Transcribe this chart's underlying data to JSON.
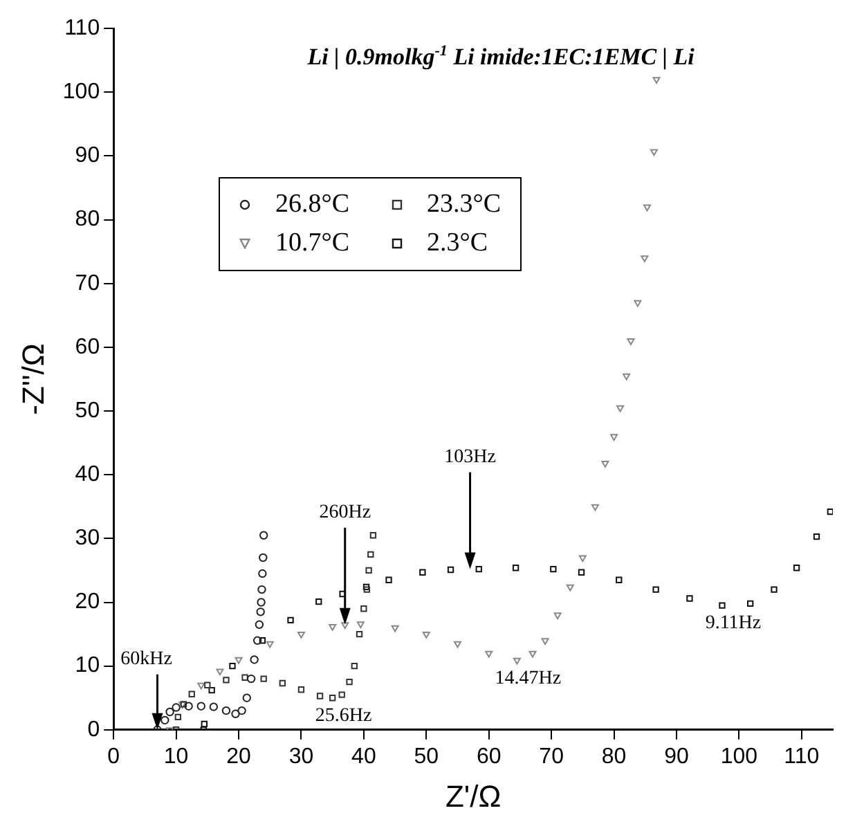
{
  "chart_data": {
    "type": "scatter",
    "title": "Li | 0.9molkg$^{-1}$ Li imide:1EC:1EMC | Li",
    "xlabel": "Z'/Ω",
    "ylabel": "-Z''/Ω",
    "xlim": [
      0,
      115
    ],
    "ylim": [
      0,
      110
    ],
    "xticks": [
      0,
      10,
      20,
      30,
      40,
      50,
      60,
      70,
      80,
      90,
      100,
      110
    ],
    "yticks": [
      0,
      10,
      20,
      30,
      40,
      50,
      60,
      70,
      80,
      90,
      100,
      110
    ],
    "grid": false,
    "legend": "top left",
    "series": [
      {
        "name": "26.8°C",
        "color": "#222222",
        "marker": "circle",
        "x": [
          7,
          8.2,
          9,
          10,
          12,
          14,
          16,
          18,
          19.5,
          20.5,
          21.3,
          22,
          22.5,
          23,
          23.3,
          23.5,
          23.6,
          23.7,
          23.8,
          23.9,
          24
        ],
        "values": [
          0,
          1.5,
          2.8,
          3.5,
          3.7,
          3.7,
          3.6,
          3,
          2.5,
          3,
          5,
          8,
          11,
          14,
          16.5,
          18.5,
          20,
          22,
          24.5,
          27,
          30.5
        ]
      },
      {
        "name": "23.3°C",
        "color": "#333333",
        "marker": "square",
        "x": [
          10,
          10.3,
          11.2,
          12.5,
          15,
          18,
          21,
          24,
          27,
          30,
          33,
          35,
          36.5,
          37.7,
          38.5,
          39.3,
          40,
          40.5,
          40.8,
          41.1,
          41.5
        ],
        "values": [
          0,
          2,
          4,
          5.6,
          7,
          7.8,
          8.2,
          8,
          7.3,
          6.3,
          5.3,
          5,
          5.5,
          7.5,
          10,
          15,
          19,
          22,
          25,
          27.5,
          30.5
        ]
      },
      {
        "name": "10.7°C",
        "color": "#888888",
        "marker": "triangle",
        "x": [
          9,
          11,
          14,
          17,
          20,
          25,
          30,
          35,
          37,
          39.5,
          45,
          50,
          55,
          60,
          64.5,
          67,
          69,
          71,
          73,
          75,
          77,
          78.6,
          80,
          81,
          82,
          82.7,
          83.8,
          84.9,
          85.3,
          86.4,
          86.8
        ],
        "values": [
          0,
          4,
          7,
          9.2,
          11,
          13.5,
          15,
          16.2,
          16.5,
          16.6,
          16,
          15,
          13.5,
          12,
          10.9,
          12,
          14,
          18,
          22.4,
          27,
          35,
          41.8,
          46,
          50.5,
          55.5,
          61,
          67,
          74,
          82,
          90.7,
          102
        ]
      },
      {
        "name": "2.3°C",
        "color": "#111111",
        "marker": "square",
        "x": [
          14.4,
          14.5,
          15.7,
          19,
          23.8,
          28.3,
          32.8,
          36.6,
          40.4,
          44,
          49.4,
          53.9,
          58.4,
          64.3,
          70.3,
          74.8,
          80.8,
          86.7,
          92.1,
          97.3,
          101.8,
          105.6,
          109.2,
          112.4,
          114.6
        ],
        "values": [
          0,
          0.9,
          6.2,
          10,
          14,
          17.2,
          20.1,
          21.3,
          22.4,
          23.5,
          24.7,
          25.1,
          25.2,
          25.4,
          25.2,
          24.7,
          23.5,
          22,
          20.6,
          19.5,
          19.8,
          22,
          25.4,
          30.3,
          34.2
        ]
      }
    ],
    "annotations": [
      {
        "text": "60kHz",
        "x": 7,
        "y": 0
      },
      {
        "text": "260Hz",
        "x": 37,
        "y": 16.5
      },
      {
        "text": "103Hz",
        "x": 57,
        "y": 25.2
      },
      {
        "text": "25.6Hz",
        "x": 35,
        "y": 5
      },
      {
        "text": "14.47Hz",
        "x": 64.5,
        "y": 10.9
      },
      {
        "text": "9.11Hz",
        "x": 97.3,
        "y": 19.5
      }
    ]
  }
}
